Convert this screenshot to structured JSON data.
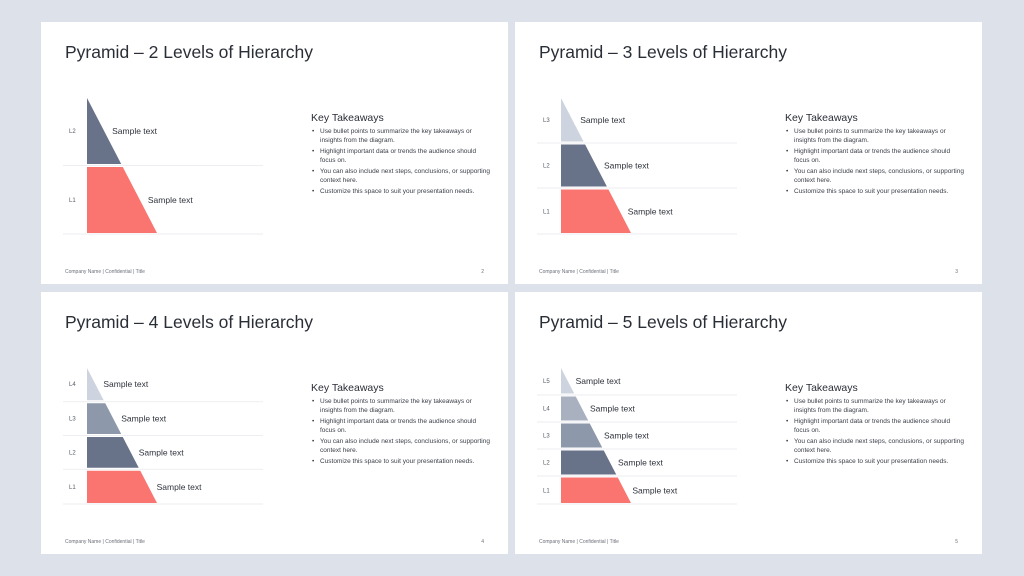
{
  "slides": [
    {
      "title": "Pyramid – 2 Levels of Hierarchy",
      "levels": [
        {
          "tag": "L2",
          "text": "Sample text",
          "color": "#687289"
        },
        {
          "tag": "L1",
          "text": "Sample text",
          "color": "#fa7470"
        }
      ],
      "takeaways_title": "Key Takeaways",
      "bullets": [
        "Use bullet points to summarize the key takeaways or insights from the diagram.",
        "Highlight important data or trends the audience should focus on.",
        "You can also include next steps, conclusions, or supporting context here.",
        "Customize this space to suit your presentation needs."
      ],
      "footer": "Company Name | Confidential | Title",
      "page": "2"
    },
    {
      "title": "Pyramid – 3 Levels of Hierarchy",
      "levels": [
        {
          "tag": "L3",
          "text": "Sample text",
          "color": "#cdd4df"
        },
        {
          "tag": "L2",
          "text": "Sample text",
          "color": "#687289"
        },
        {
          "tag": "L1",
          "text": "Sample text",
          "color": "#fa7470"
        }
      ],
      "takeaways_title": "Key Takeaways",
      "bullets": [
        "Use bullet points to summarize the key takeaways or insights from the diagram.",
        "Highlight important data or trends the audience should focus on.",
        "You can also include next steps, conclusions, or supporting context here.",
        "Customize this space to suit your presentation needs."
      ],
      "footer": "Company Name | Confidential | Title",
      "page": "3"
    },
    {
      "title": "Pyramid – 4 Levels of Hierarchy",
      "levels": [
        {
          "tag": "L4",
          "text": "Sample text",
          "color": "#cdd4df"
        },
        {
          "tag": "L3",
          "text": "Sample text",
          "color": "#8e98ab"
        },
        {
          "tag": "L2",
          "text": "Sample text",
          "color": "#687289"
        },
        {
          "tag": "L1",
          "text": "Sample text",
          "color": "#fa7470"
        }
      ],
      "takeaways_title": "Key Takeaways",
      "bullets": [
        "Use bullet points to summarize the key takeaways or insights from the diagram.",
        "Highlight important data or trends the audience should focus on.",
        "You can also include next steps, conclusions, or supporting context here.",
        "Customize this space to suit your presentation needs."
      ],
      "footer": "Company Name | Confidential | Title",
      "page": "4"
    },
    {
      "title": "Pyramid – 5 Levels of Hierarchy",
      "levels": [
        {
          "tag": "L5",
          "text": "Sample text",
          "color": "#cdd4df"
        },
        {
          "tag": "L4",
          "text": "Sample text",
          "color": "#a9b1c1"
        },
        {
          "tag": "L3",
          "text": "Sample text",
          "color": "#8e98ab"
        },
        {
          "tag": "L2",
          "text": "Sample text",
          "color": "#687289"
        },
        {
          "tag": "L1",
          "text": "Sample text",
          "color": "#fa7470"
        }
      ],
      "takeaways_title": "Key Takeaways",
      "bullets": [
        "Use bullet points to summarize the key takeaways or insights from the diagram.",
        "Highlight important data or trends the audience should focus on.",
        "You can also include next steps, conclusions, or supporting context here.",
        "Customize this space to suit your presentation needs."
      ],
      "footer": "Company Name | Confidential | Title",
      "page": "5"
    }
  ]
}
